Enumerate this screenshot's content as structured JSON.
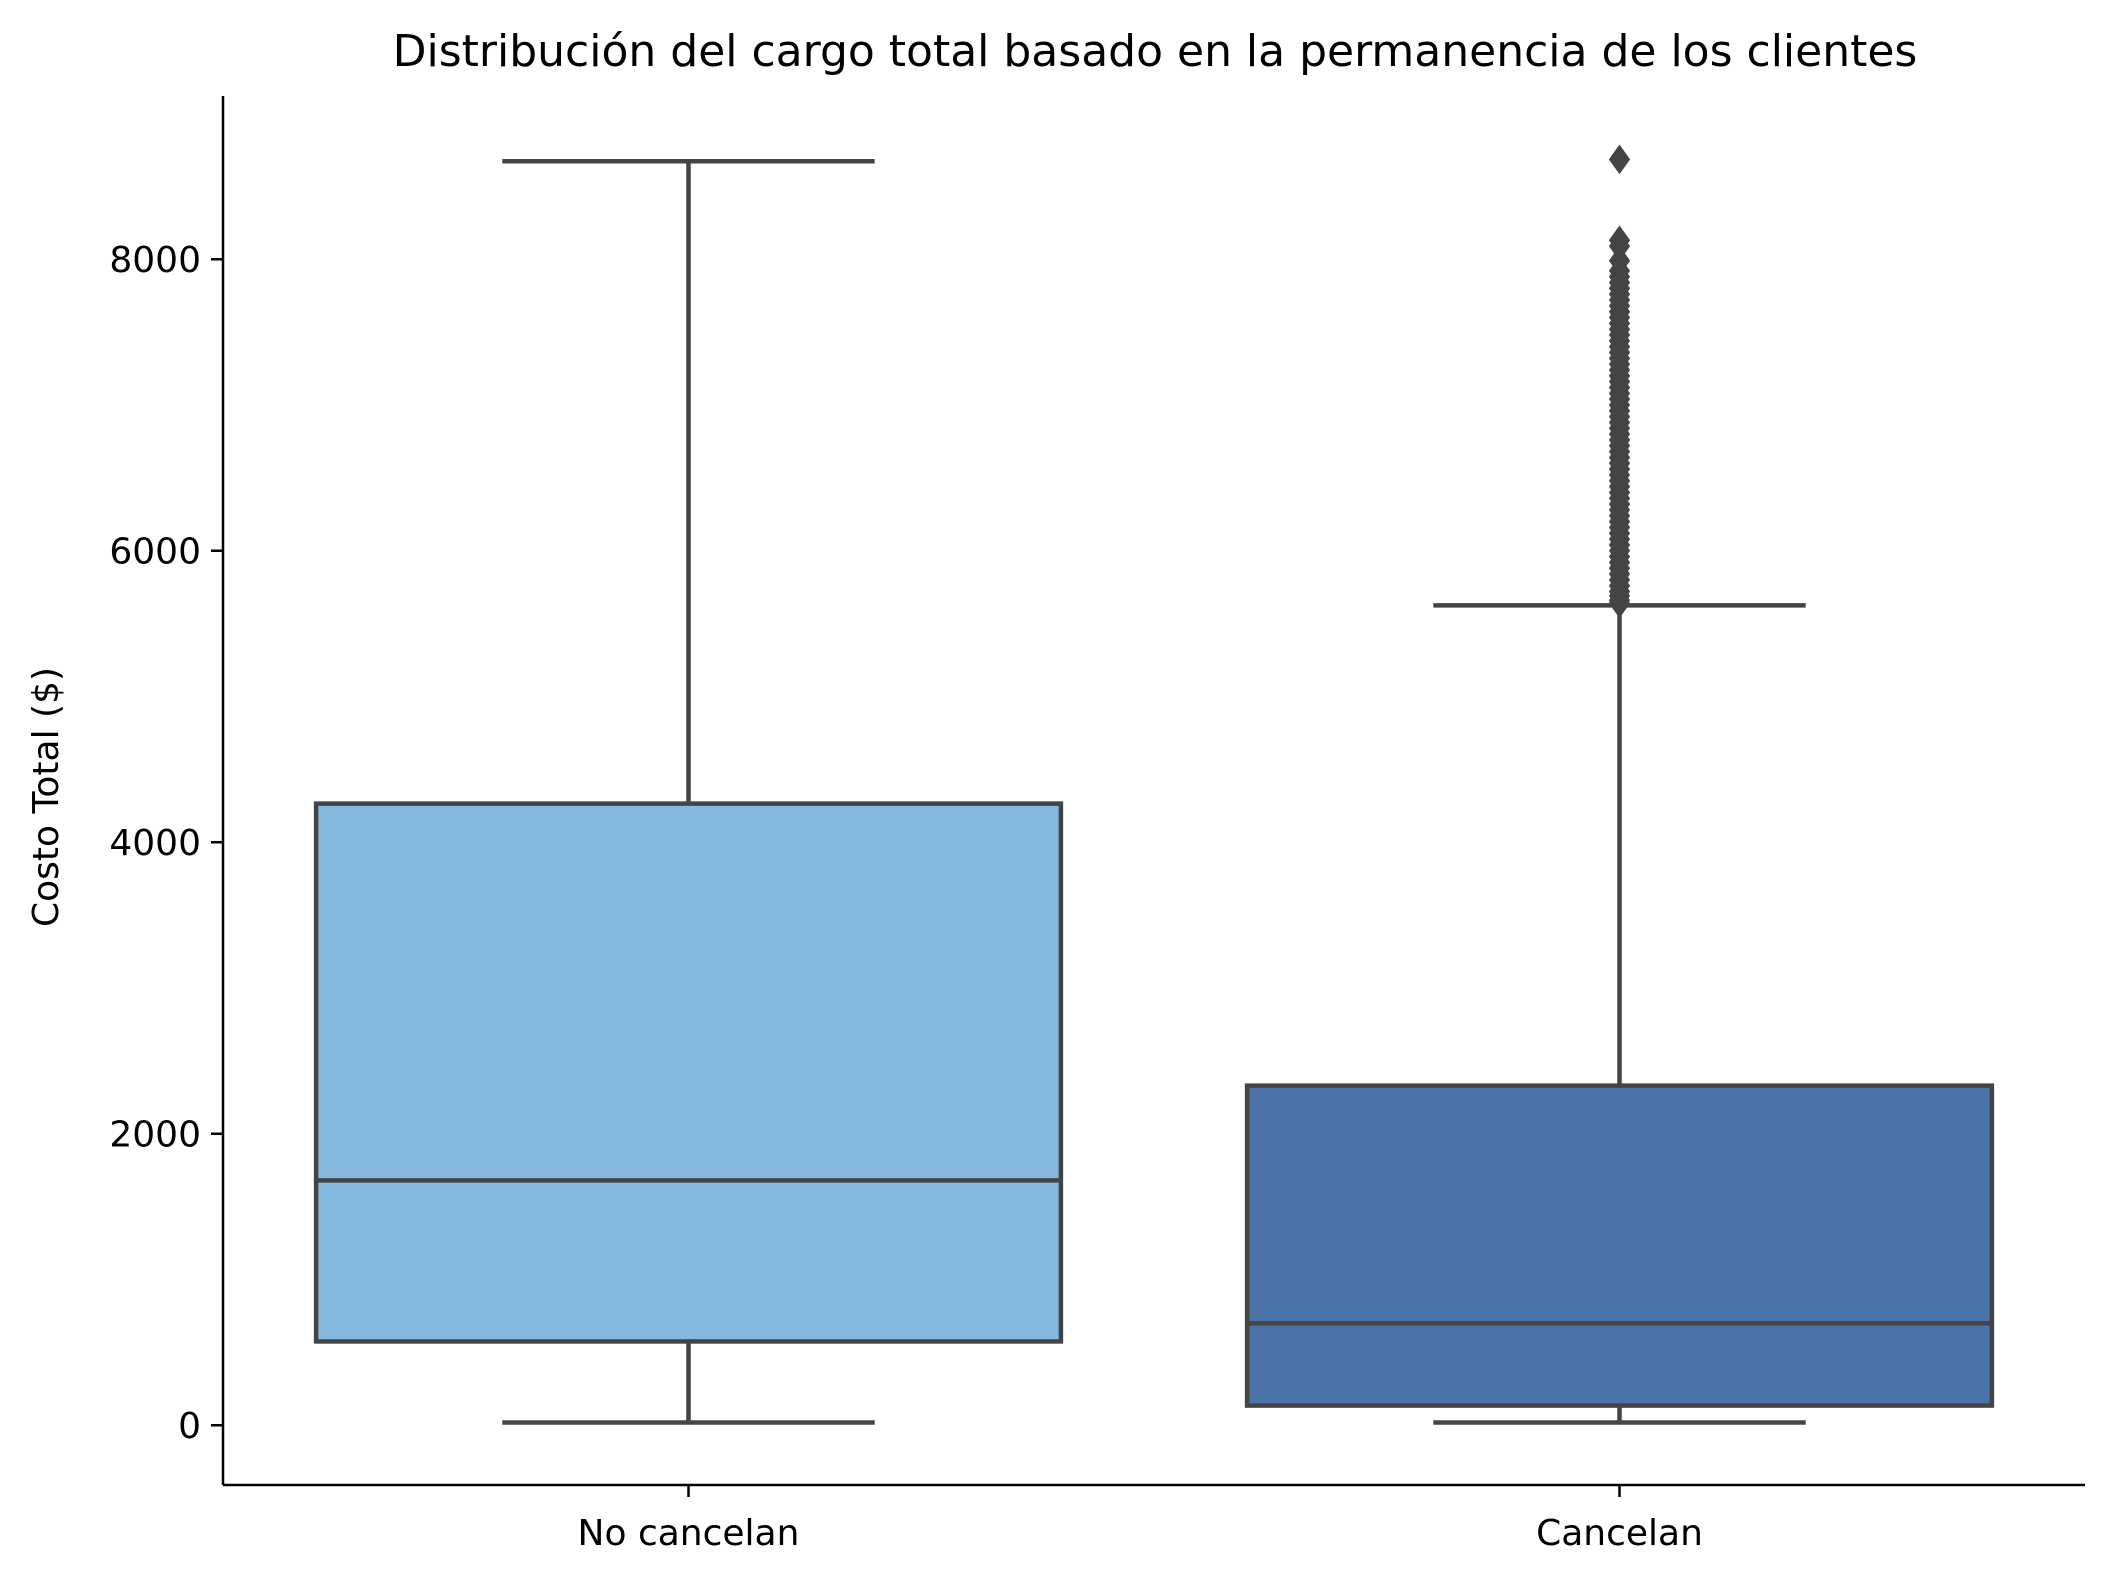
{
  "chart_data": {
    "type": "box",
    "title": "Distribución del cargo total basado en la permanencia de los clientes",
    "xlabel": "",
    "ylabel": "Costo Total ($)",
    "ylim": [
      -410,
      9120
    ],
    "yticks": [
      0,
      2000,
      4000,
      6000,
      8000
    ],
    "grid": false,
    "legend": "none",
    "categories": [
      "No cancelan",
      "Cancelan"
    ],
    "colors": {
      "No cancelan": "#85b9e0",
      "Cancelan": "#4a74a8",
      "edge": "#444444"
    },
    "boxes": [
      {
        "category": "No cancelan",
        "whisker_low": 19,
        "q1": 575,
        "median": 1680,
        "q3": 4265,
        "whisker_high": 8672,
        "outliers": []
      },
      {
        "category": "Cancelan",
        "whisker_low": 19,
        "q1": 135,
        "median": 700,
        "q3": 2330,
        "whisker_high": 5625,
        "outliers": [
          8685,
          8130,
          8090,
          7990,
          7920,
          7880,
          7840,
          7800,
          7760,
          7720,
          7680,
          7640,
          7600,
          7560,
          7520,
          7480,
          7440,
          7400,
          7360,
          7320,
          7280,
          7240,
          7200,
          7160,
          7120,
          7080,
          7040,
          7000,
          6960,
          6920,
          6880,
          6840,
          6800,
          6760,
          6720,
          6680,
          6640,
          6600,
          6560,
          6520,
          6480,
          6440,
          6400,
          6360,
          6320,
          6280,
          6240,
          6200,
          6160,
          6120,
          6080,
          6040,
          6000,
          5960,
          5920,
          5880,
          5840,
          5800,
          5760,
          5720,
          5690,
          5660,
          5640
        ]
      }
    ]
  }
}
